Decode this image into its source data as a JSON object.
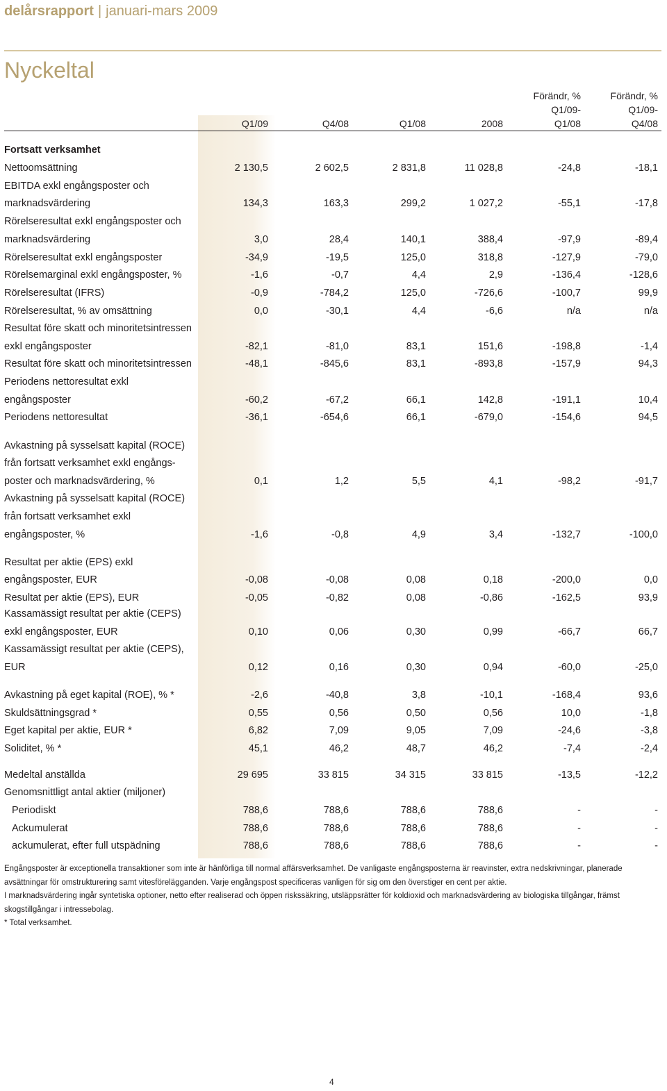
{
  "header": {
    "brand": "delårsrapport",
    "separator": "|",
    "period": "januari-mars 2009"
  },
  "title": "Nyckeltal",
  "columns": [
    "Q1/09",
    "Q4/08",
    "Q1/08",
    "2008",
    "Förändr, %\nQ1/09-\nQ1/08",
    "Förändr, %\nQ1/09-\nQ4/08"
  ],
  "section_title": "Fortsatt verksamhet",
  "rows": [
    {
      "label": "Nettoomsättning",
      "values": [
        "2 130,5",
        "2 602,5",
        "2 831,8",
        "11 028,8",
        "-24,8",
        "-18,1"
      ]
    },
    {
      "label": "EBITDA exkl engångsposter och"
    },
    {
      "label": "marknadsvärdering",
      "values": [
        "134,3",
        "163,3",
        "299,2",
        "1 027,2",
        "-55,1",
        "-17,8"
      ]
    },
    {
      "label": "Rörelseresultat exkl engångsposter och"
    },
    {
      "label": "marknadsvärdering",
      "values": [
        "3,0",
        "28,4",
        "140,1",
        "388,4",
        "-97,9",
        "-89,4"
      ]
    },
    {
      "label": "Rörelseresultat exkl engångsposter",
      "values": [
        "-34,9",
        "-19,5",
        "125,0",
        "318,8",
        "-127,9",
        "-79,0"
      ]
    },
    {
      "label": "Rörelsemarginal exkl engångsposter, %",
      "values": [
        "-1,6",
        "-0,7",
        "4,4",
        "2,9",
        "-136,4",
        "-128,6"
      ]
    },
    {
      "label": "Rörelseresultat (IFRS)",
      "values": [
        "-0,9",
        "-784,2",
        "125,0",
        "-726,6",
        "-100,7",
        "99,9"
      ]
    },
    {
      "label": "Rörelseresultat, % av omsättning",
      "values": [
        "0,0",
        "-30,1",
        "4,4",
        "-6,6",
        "n/a",
        "n/a"
      ]
    },
    {
      "label": "Resultat före skatt och minoritetsintressen"
    },
    {
      "label": "exkl engångsposter",
      "values": [
        "-82,1",
        "-81,0",
        "83,1",
        "151,6",
        "-198,8",
        "-1,4"
      ]
    },
    {
      "label": "Resultat före skatt och minoritetsintressen",
      "values": [
        "-48,1",
        "-845,6",
        "83,1",
        "-893,8",
        "-157,9",
        "94,3"
      ]
    },
    {
      "label": "Periodens nettoresultat exkl"
    },
    {
      "label": "engångsposter",
      "values": [
        "-60,2",
        "-67,2",
        "66,1",
        "142,8",
        "-191,1",
        "10,4"
      ]
    },
    {
      "label": "Periodens nettoresultat",
      "values": [
        "-36,1",
        "-654,6",
        "66,1",
        "-679,0",
        "-154,6",
        "94,5"
      ]
    },
    {
      "label": "Avkastning på sysselsatt kapital (ROCE)"
    },
    {
      "label": "från fortsatt verksamhet exkl engångs-"
    },
    {
      "label": "poster och marknadsvärdering, %",
      "values": [
        "0,1",
        "1,2",
        "5,5",
        "4,1",
        "-98,2",
        "-91,7"
      ]
    },
    {
      "label": "Avkastning på sysselsatt kapital (ROCE)"
    },
    {
      "label": "från fortsatt verksamhet exkl"
    },
    {
      "label": "engångsposter, %",
      "values": [
        "-1,6",
        "-0,8",
        "4,9",
        "3,4",
        "-132,7",
        "-100,0"
      ]
    },
    {
      "label": "Resultat per aktie (EPS) exkl"
    },
    {
      "label": "engångsposter, EUR",
      "values": [
        "-0,08",
        "-0,08",
        "0,08",
        "0,18",
        "-200,0",
        "0,0"
      ]
    },
    {
      "label": "Resultat per aktie (EPS), EUR",
      "values": [
        "-0,05",
        "-0,82",
        "0,08",
        "-0,86",
        "-162,5",
        "93,9"
      ]
    },
    {
      "label": "Kassamässigt resultat per aktie (CEPS)"
    },
    {
      "label": "exkl engångsposter, EUR",
      "values": [
        "0,10",
        "0,06",
        "0,30",
        "0,99",
        "-66,7",
        "66,7"
      ]
    },
    {
      "label": "Kassamässigt resultat per aktie (CEPS),"
    },
    {
      "label": "EUR",
      "values": [
        "0,12",
        "0,16",
        "0,30",
        "0,94",
        "-60,0",
        "-25,0"
      ]
    },
    {
      "label": "Avkastning på eget kapital (ROE), % *",
      "values": [
        "-2,6",
        "-40,8",
        "3,8",
        "-10,1",
        "-168,4",
        "93,6"
      ]
    },
    {
      "label": "Skuldsättningsgrad *",
      "values": [
        "0,55",
        "0,56",
        "0,50",
        "0,56",
        "10,0",
        "-1,8"
      ]
    },
    {
      "label": "Eget kapital per aktie, EUR *",
      "values": [
        "6,82",
        "7,09",
        "9,05",
        "7,09",
        "-24,6",
        "-3,8"
      ]
    },
    {
      "label": "Soliditet, % *",
      "values": [
        "45,1",
        "46,2",
        "48,7",
        "46,2",
        "-7,4",
        "-2,4"
      ]
    },
    {
      "label": "Medeltal anställda",
      "values": [
        "29 695",
        "33 815",
        "34 315",
        "33 815",
        "-13,5",
        "-12,2"
      ]
    },
    {
      "label": "Genomsnittligt antal aktier (miljoner)"
    },
    {
      "label": "Periodiskt",
      "values": [
        "788,6",
        "788,6",
        "788,6",
        "788,6",
        "-",
        "-"
      ]
    },
    {
      "label": "Ackumulerat",
      "values": [
        "788,6",
        "788,6",
        "788,6",
        "788,6",
        "-",
        "-"
      ]
    },
    {
      "label": "ackumulerat, efter full utspädning",
      "values": [
        "788,6",
        "788,6",
        "788,6",
        "788,6",
        "-",
        "-"
      ]
    }
  ],
  "footnotes": [
    "Engångsposter är exceptionella transaktioner som inte är hänförliga till normal affärsverksamhet. De vanligaste engångsposterna är reavinster, extra nedskrivningar, planerade avsättningar för omstrukturering samt vitesförelägganden. Varje engångspost specificeras vanligen för sig om den överstiger en cent per aktie.",
    "I marknadsvärdering ingår syntetiska optioner, netto efter realiserad och öppen riskssäkring, utsläppsrätter för koldioxid och marknadsvärdering av biologiska tillgångar, främst skogstillgångar i intressebolag.",
    "* Total verksamhet."
  ],
  "page_number": "4"
}
